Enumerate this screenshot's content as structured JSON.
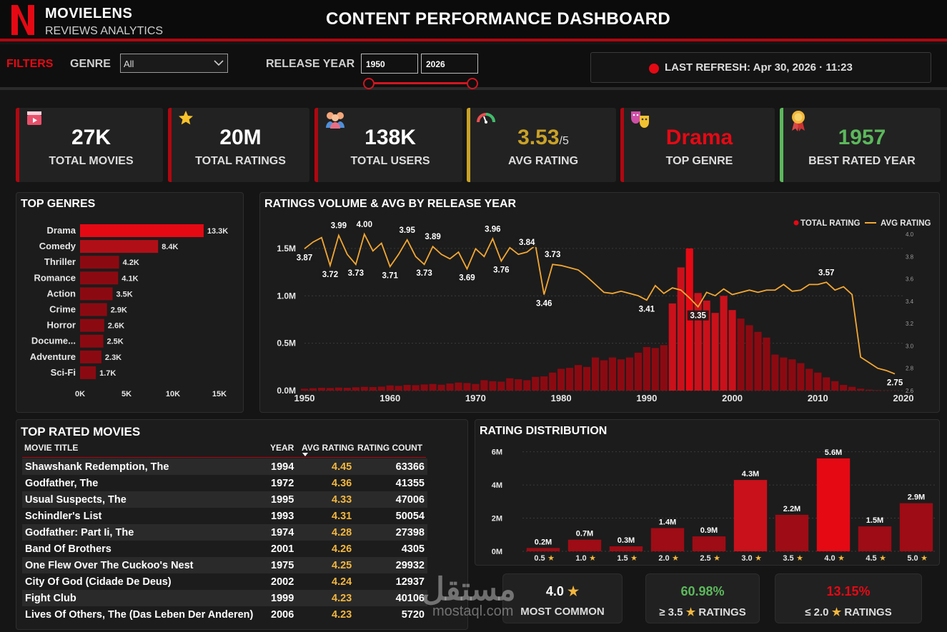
{
  "header": {
    "brand_title": "MOVIELENS",
    "brand_subtitle": "REVIEWS ANALYTICS",
    "dashboard_title": "CONTENT PERFORMANCE DASHBOARD"
  },
  "filters": {
    "label": "FILTERS",
    "genre_label": "GENRE",
    "genre_value": "All",
    "release_year_label": "RELEASE YEAR",
    "year_from": "1950",
    "year_to": "2026",
    "refresh_text": "LAST REFRESH: Apr 30, 2026 · 11:23"
  },
  "kpis": [
    {
      "value": "27K",
      "label": "TOTAL MOVIES",
      "icon": "clapperboard-icon"
    },
    {
      "value": "20M",
      "label": "TOTAL RATINGS",
      "icon": "star-icon"
    },
    {
      "value": "138K",
      "label": "TOTAL USERS",
      "icon": "users-icon"
    },
    {
      "value": "3.53",
      "suffix": "/5",
      "label": "AVG RATING",
      "icon": "gauge-icon"
    },
    {
      "value": "Drama",
      "label": "TOP GENRE",
      "icon": "theater-masks-icon"
    },
    {
      "value": "1957",
      "label": "BEST RATED YEAR",
      "icon": "award-medal-icon"
    }
  ],
  "colors": {
    "accent": "#e50914",
    "gold": "#f3b73f",
    "green": "#5cb85c",
    "dark_red": "#8b0a12"
  },
  "chart_data": [
    {
      "type": "bar",
      "title": "TOP GENRES",
      "orientation": "horizontal",
      "categories": [
        "Drama",
        "Comedy",
        "Thriller",
        "Romance",
        "Action",
        "Crime",
        "Horror",
        "Docume...",
        "Adventure",
        "Sci-Fi"
      ],
      "values": [
        13300,
        8400,
        4200,
        4100,
        3500,
        2900,
        2600,
        2500,
        2300,
        1700
      ],
      "data_labels": [
        "13.3K",
        "8.4K",
        "4.2K",
        "4.1K",
        "3.5K",
        "2.9K",
        "2.6K",
        "2.5K",
        "2.3K",
        "1.7K"
      ],
      "x_ticks": [
        "0K",
        "5K",
        "10K",
        "15K"
      ],
      "xlim": [
        0,
        15000
      ]
    },
    {
      "type": "bar",
      "title": "RATINGS VOLUME & AVG BY RELEASE YEAR",
      "legend": [
        "TOTAL RATING",
        "AVG RATING"
      ],
      "legend_position": "top-right",
      "x": [
        1950,
        1951,
        1952,
        1953,
        1954,
        1955,
        1956,
        1957,
        1958,
        1959,
        1960,
        1961,
        1962,
        1963,
        1964,
        1965,
        1966,
        1967,
        1968,
        1969,
        1970,
        1971,
        1972,
        1973,
        1974,
        1975,
        1976,
        1977,
        1978,
        1979,
        1980,
        1981,
        1982,
        1983,
        1984,
        1985,
        1986,
        1987,
        1988,
        1989,
        1990,
        1991,
        1992,
        1993,
        1994,
        1995,
        1996,
        1997,
        1998,
        1999,
        2000,
        2001,
        2002,
        2003,
        2004,
        2005,
        2006,
        2007,
        2008,
        2009,
        2010,
        2011,
        2012,
        2013,
        2014,
        2015,
        2016,
        2017,
        2018,
        2019
      ],
      "series": [
        {
          "name": "TOTAL RATING",
          "type": "bar",
          "axis": "left",
          "values": [
            20000,
            25000,
            30000,
            28000,
            32000,
            30000,
            35000,
            40000,
            38000,
            42000,
            55000,
            50000,
            60000,
            58000,
            65000,
            70000,
            62000,
            75000,
            85000,
            80000,
            70000,
            110000,
            100000,
            95000,
            130000,
            120000,
            110000,
            145000,
            150000,
            190000,
            230000,
            240000,
            270000,
            250000,
            350000,
            320000,
            350000,
            330000,
            350000,
            400000,
            460000,
            450000,
            480000,
            920000,
            1300000,
            1500000,
            1030000,
            950000,
            820000,
            1000000,
            850000,
            760000,
            690000,
            620000,
            560000,
            380000,
            350000,
            330000,
            290000,
            230000,
            190000,
            140000,
            100000,
            60000,
            40000,
            20000,
            10000,
            5000,
            3000,
            2000
          ]
        },
        {
          "name": "AVG RATING",
          "type": "line",
          "axis": "right",
          "values": [
            3.87,
            3.93,
            3.97,
            3.72,
            3.99,
            3.82,
            3.73,
            4.0,
            3.85,
            3.92,
            3.71,
            3.82,
            3.95,
            3.8,
            3.73,
            3.89,
            3.82,
            3.78,
            3.84,
            3.69,
            3.87,
            3.8,
            3.96,
            3.76,
            3.88,
            3.82,
            3.84,
            3.9,
            3.46,
            3.73,
            3.72,
            3.7,
            3.68,
            3.62,
            3.55,
            3.48,
            3.47,
            3.49,
            3.47,
            3.45,
            3.41,
            3.54,
            3.47,
            3.52,
            3.5,
            3.43,
            3.35,
            3.48,
            3.45,
            3.51,
            3.46,
            3.48,
            3.5,
            3.48,
            3.5,
            3.5,
            3.55,
            3.49,
            3.5,
            3.55,
            3.55,
            3.57,
            3.5,
            3.53,
            3.46,
            2.9,
            2.85,
            2.8,
            2.78,
            2.75
          ]
        }
      ],
      "point_labels": [
        {
          "x": 1950,
          "y": 3.87,
          "text": "3.87"
        },
        {
          "x": 1953,
          "y": 3.72,
          "text": "3.72"
        },
        {
          "x": 1954,
          "y": 3.99,
          "text": "3.99"
        },
        {
          "x": 1956,
          "y": 3.73,
          "text": "3.73"
        },
        {
          "x": 1957,
          "y": 4.0,
          "text": "4.00"
        },
        {
          "x": 1960,
          "y": 3.71,
          "text": "3.71"
        },
        {
          "x": 1962,
          "y": 3.95,
          "text": "3.95"
        },
        {
          "x": 1964,
          "y": 3.73,
          "text": "3.73"
        },
        {
          "x": 1965,
          "y": 3.89,
          "text": "3.89"
        },
        {
          "x": 1969,
          "y": 3.69,
          "text": "3.69"
        },
        {
          "x": 1972,
          "y": 3.96,
          "text": "3.96"
        },
        {
          "x": 1973,
          "y": 3.76,
          "text": "3.76"
        },
        {
          "x": 1976,
          "y": 3.84,
          "text": "3.84"
        },
        {
          "x": 1978,
          "y": 3.46,
          "text": "3.46"
        },
        {
          "x": 1979,
          "y": 3.73,
          "text": "3.73"
        },
        {
          "x": 1990,
          "y": 3.41,
          "text": "3.41"
        },
        {
          "x": 1996,
          "y": 3.35,
          "text": "3.35"
        },
        {
          "x": 2011,
          "y": 3.57,
          "text": "3.57"
        },
        {
          "x": 2019,
          "y": 2.75,
          "text": "2.75"
        }
      ],
      "x_ticks": [
        "1950",
        "1960",
        "1970",
        "1980",
        "1990",
        "2000",
        "2010",
        "2020"
      ],
      "y_ticks_left": [
        "0.0M",
        "0.5M",
        "1.0M",
        "1.5M"
      ],
      "y_ticks_right": [
        "2.6",
        "2.8",
        "3.0",
        "3.2",
        "3.4",
        "3.6",
        "3.8",
        "4.0"
      ],
      "ylim_left": [
        0,
        1650000
      ],
      "ylim_right": [
        2.6,
        4.0
      ]
    },
    {
      "type": "bar",
      "title": "RATING DISTRIBUTION",
      "categories": [
        "0.5",
        "1.0",
        "1.5",
        "2.0",
        "2.5",
        "3.0",
        "3.5",
        "4.0",
        "4.5",
        "5.0"
      ],
      "values": [
        0.2,
        0.7,
        0.3,
        1.4,
        0.9,
        4.3,
        2.2,
        5.6,
        1.5,
        2.9
      ],
      "data_labels": [
        "0.2M",
        "0.7M",
        "0.3M",
        "1.4M",
        "0.9M",
        "4.3M",
        "2.2M",
        "5.6M",
        "1.5M",
        "2.9M"
      ],
      "y_ticks": [
        "0M",
        "2M",
        "4M",
        "6M"
      ],
      "ylim": [
        0,
        6.5
      ],
      "unit": "M"
    }
  ],
  "top_movies": {
    "title": "TOP RATED MOVIES",
    "columns": [
      "MOVIE TITLE",
      "YEAR",
      "AVG RATING",
      "RATING COUNT"
    ],
    "rows": [
      {
        "title": "Shawshank Redemption, The",
        "year": "1994",
        "avg": "4.45",
        "count": "63366"
      },
      {
        "title": "Godfather, The",
        "year": "1972",
        "avg": "4.36",
        "count": "41355"
      },
      {
        "title": "Usual Suspects, The",
        "year": "1995",
        "avg": "4.33",
        "count": "47006"
      },
      {
        "title": "Schindler's List",
        "year": "1993",
        "avg": "4.31",
        "count": "50054"
      },
      {
        "title": "Godfather: Part Ii, The",
        "year": "1974",
        "avg": "4.28",
        "count": "27398"
      },
      {
        "title": "Band Of Brothers",
        "year": "2001",
        "avg": "4.26",
        "count": "4305"
      },
      {
        "title": "One Flew Over The Cuckoo's Nest",
        "year": "1975",
        "avg": "4.25",
        "count": "29932"
      },
      {
        "title": "City Of God (Cidade De Deus)",
        "year": "2002",
        "avg": "4.24",
        "count": "12937"
      },
      {
        "title": "Fight Club",
        "year": "1999",
        "avg": "4.23",
        "count": "40106"
      },
      {
        "title": "Lives Of Others, The (Das Leben Der Anderen)",
        "year": "2006",
        "avg": "4.23",
        "count": "5720"
      }
    ]
  },
  "summary_cards": [
    {
      "value": "4.0",
      "label": "MOST COMMON"
    },
    {
      "value": "60.98%",
      "label_prefix": "≥ 3.5",
      "label": "RATINGS"
    },
    {
      "value": "13.15%",
      "label_prefix": "≤ 2.0",
      "label": "RATINGS"
    }
  ],
  "watermark": {
    "arabic": "مستقل",
    "latin": "mostaql.com"
  }
}
